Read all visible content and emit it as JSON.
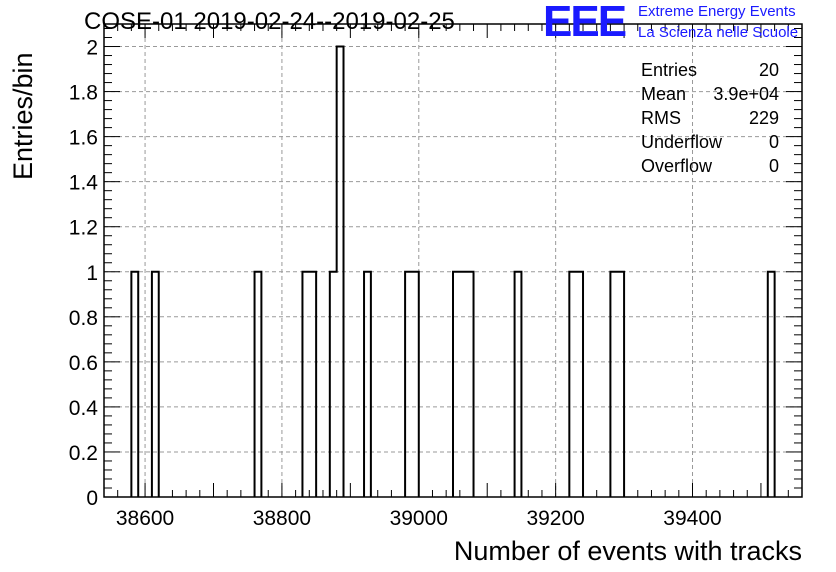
{
  "header": {
    "title": "COSE-01 2019-02-24--2019-02-25",
    "logo_text": "EEE",
    "logo_line1": "Extreme Energy Events",
    "logo_line2": "La Scienza nelle Scuole",
    "logo_color": "#1a1aff"
  },
  "stats": [
    {
      "label": "Entries",
      "value": "20"
    },
    {
      "label": "Mean",
      "value": "3.9e+04"
    },
    {
      "label": "RMS",
      "value": "229"
    },
    {
      "label": "Underflow",
      "value": "0"
    },
    {
      "label": "Overflow",
      "value": "0"
    }
  ],
  "chart_data": {
    "type": "bar",
    "title": "COSE-01 2019-02-24--2019-02-25",
    "xlabel": "Number of events with tracks",
    "ylabel": "Entries/bin",
    "xlim": [
      38540,
      39560
    ],
    "ylim": [
      0,
      2.1
    ],
    "grid": true,
    "bin_width": 10,
    "x_ticks": [
      38600,
      38800,
      39000,
      39200,
      39400
    ],
    "x_tick_labels": [
      "38600",
      "38800",
      "39000",
      "39200",
      "39400"
    ],
    "y_ticks": [
      0,
      0.2,
      0.4,
      0.6,
      0.8,
      1,
      1.2,
      1.4,
      1.6,
      1.8,
      2
    ],
    "y_tick_labels": [
      "0",
      "0.2",
      "0.4",
      "0.6",
      "0.8",
      "1",
      "1.2",
      "1.4",
      "1.6",
      "1.8",
      "2"
    ],
    "bins": [
      {
        "x_low": 38580,
        "x_high": 38590,
        "count": 1
      },
      {
        "x_low": 38610,
        "x_high": 38620,
        "count": 1
      },
      {
        "x_low": 38760,
        "x_high": 38770,
        "count": 1
      },
      {
        "x_low": 38830,
        "x_high": 38840,
        "count": 1
      },
      {
        "x_low": 38840,
        "x_high": 38850,
        "count": 1
      },
      {
        "x_low": 38870,
        "x_high": 38880,
        "count": 1
      },
      {
        "x_low": 38880,
        "x_high": 38890,
        "count": 2
      },
      {
        "x_low": 38920,
        "x_high": 38930,
        "count": 1
      },
      {
        "x_low": 38980,
        "x_high": 38990,
        "count": 1
      },
      {
        "x_low": 38990,
        "x_high": 39000,
        "count": 1
      },
      {
        "x_low": 39050,
        "x_high": 39060,
        "count": 1
      },
      {
        "x_low": 39060,
        "x_high": 39070,
        "count": 1
      },
      {
        "x_low": 39070,
        "x_high": 39080,
        "count": 1
      },
      {
        "x_low": 39140,
        "x_high": 39150,
        "count": 1
      },
      {
        "x_low": 39220,
        "x_high": 39230,
        "count": 1
      },
      {
        "x_low": 39230,
        "x_high": 39240,
        "count": 1
      },
      {
        "x_low": 39280,
        "x_high": 39290,
        "count": 1
      },
      {
        "x_low": 39290,
        "x_high": 39300,
        "count": 1
      },
      {
        "x_low": 39510,
        "x_high": 39520,
        "count": 1
      }
    ]
  }
}
